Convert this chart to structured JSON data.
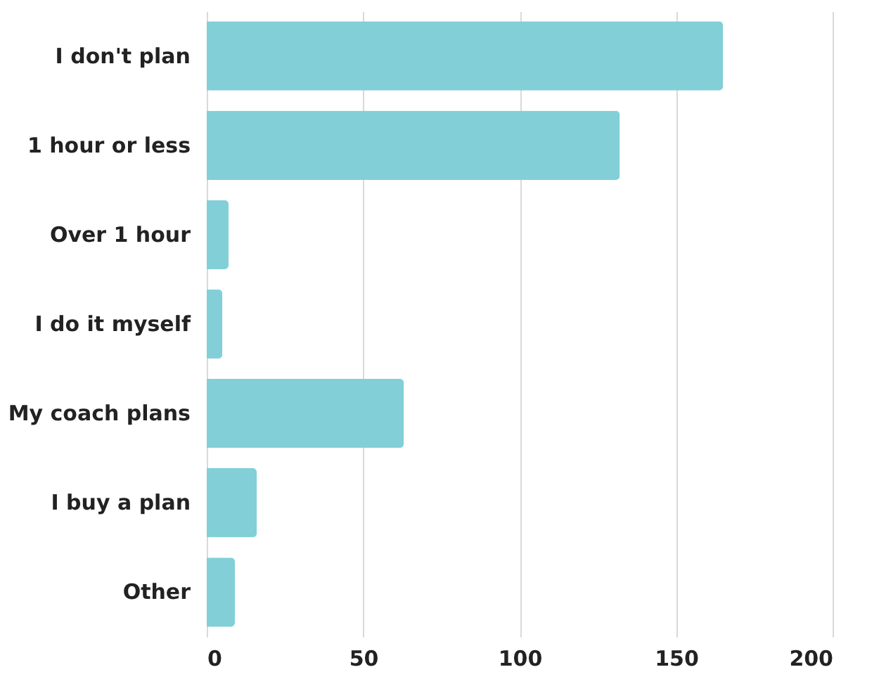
{
  "chart_data": {
    "type": "bar",
    "orientation": "horizontal",
    "categories": [
      "I don't plan",
      "1 hour or less",
      "Over 1 hour",
      "I do it myself",
      "My coach plans",
      "I buy a plan",
      "Other"
    ],
    "values": [
      165,
      132,
      7,
      5,
      63,
      16,
      9
    ],
    "color": "#82cfd8",
    "xlim": [
      0,
      200
    ],
    "xticks": [
      0,
      50,
      100,
      150,
      200
    ],
    "grid": "x"
  }
}
